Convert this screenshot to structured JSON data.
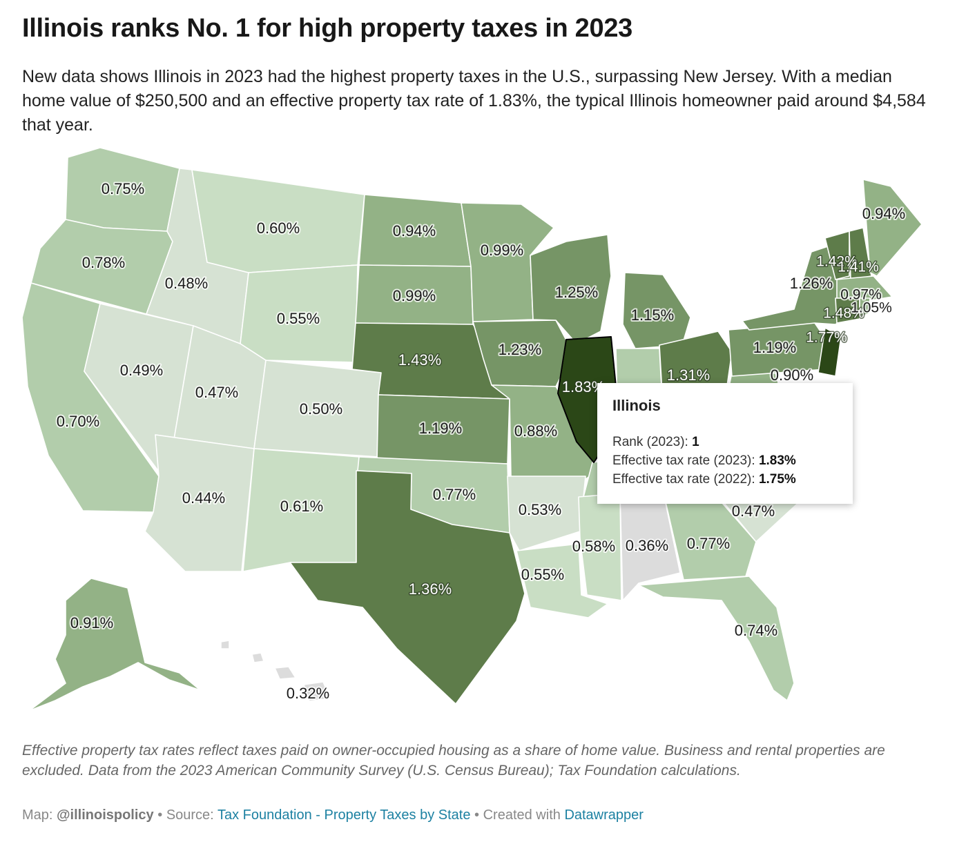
{
  "title": "Illinois ranks No. 1 for high property taxes in 2023",
  "subtitle": "New data shows Illinois in 2023 had the highest property taxes in the U.S., surpassing New Jersey. With a median home value of $250,500 and an effective property tax rate of 1.83%, the typical Illinois homeowner paid around $4,584 that year.",
  "colors": {
    "very_dark": "#2b4717",
    "dark": "#5e7c4a",
    "mid_dark": "#769566",
    "mid": "#93b286",
    "light": "#b2cdab",
    "lighter": "#c9dec4",
    "lightest": "#d6e2d3",
    "gray": "#dcdcdc",
    "link": "#1d81a2"
  },
  "map": {
    "states": [
      {
        "name": "Washington",
        "rate": "0.75%"
      },
      {
        "name": "Oregon",
        "rate": "0.78%"
      },
      {
        "name": "California",
        "rate": "0.70%"
      },
      {
        "name": "Nevada",
        "rate": "0.49%"
      },
      {
        "name": "Idaho",
        "rate": "0.48%"
      },
      {
        "name": "Montana",
        "rate": "0.60%"
      },
      {
        "name": "Wyoming",
        "rate": "0.55%"
      },
      {
        "name": "Utah",
        "rate": "0.47%"
      },
      {
        "name": "Arizona",
        "rate": "0.44%"
      },
      {
        "name": "Colorado",
        "rate": "0.50%"
      },
      {
        "name": "New Mexico",
        "rate": "0.61%"
      },
      {
        "name": "North Dakota",
        "rate": "0.94%"
      },
      {
        "name": "South Dakota",
        "rate": "0.99%"
      },
      {
        "name": "Nebraska",
        "rate": "1.43%"
      },
      {
        "name": "Kansas",
        "rate": "1.19%"
      },
      {
        "name": "Oklahoma",
        "rate": "0.77%"
      },
      {
        "name": "Texas",
        "rate": "1.36%"
      },
      {
        "name": "Minnesota",
        "rate": "0.99%"
      },
      {
        "name": "Iowa",
        "rate": "1.23%"
      },
      {
        "name": "Missouri",
        "rate": "0.88%"
      },
      {
        "name": "Arkansas",
        "rate": "0.53%"
      },
      {
        "name": "Louisiana",
        "rate": "0.55%"
      },
      {
        "name": "Wisconsin",
        "rate": "1.25%"
      },
      {
        "name": "Illinois",
        "rate": "1.83%"
      },
      {
        "name": "Michigan",
        "rate": "1.15%"
      },
      {
        "name": "Ohio",
        "rate": "1.31%"
      },
      {
        "name": "Mississippi",
        "rate": "0.58%"
      },
      {
        "name": "Alabama",
        "rate": "0.36%"
      },
      {
        "name": "Georgia",
        "rate": "0.77%"
      },
      {
        "name": "South Carolina",
        "rate": "0.47%"
      },
      {
        "name": "Florida",
        "rate": "0.74%"
      },
      {
        "name": "Pennsylvania",
        "rate": "1.19%"
      },
      {
        "name": "West Virginia",
        "rate": "0.90%"
      },
      {
        "name": "New York",
        "rate": "1.26%"
      },
      {
        "name": "New Jersey",
        "rate": "1.77%"
      },
      {
        "name": "Vermont",
        "rate": "1.42%"
      },
      {
        "name": "New Hampshire",
        "rate": "1.41%"
      },
      {
        "name": "Maine",
        "rate": "0.94%"
      },
      {
        "name": "Massachusetts",
        "rate": "0.97%"
      },
      {
        "name": "Connecticut",
        "rate": "1.48%"
      },
      {
        "name": "Rhode Island",
        "rate": "1.05%"
      },
      {
        "name": "Alaska",
        "rate": "0.91%"
      },
      {
        "name": "Hawaii",
        "rate": "0.32%"
      }
    ]
  },
  "tooltip": {
    "state": "Illinois",
    "rank_label": "Rank (2023):",
    "rank_value": "1",
    "rate2023_label": "Effective tax rate (2023):",
    "rate2023_value": "1.83%",
    "rate2022_label": "Effective tax rate (2022):",
    "rate2022_value": "1.75%"
  },
  "notes": "Effective property tax rates reflect taxes paid on owner-occupied housing as a share of home value. Business and rental properties are excluded. Data from the 2023 American Community Survey (U.S. Census Bureau); Tax Foundation calculations.",
  "footer": {
    "map_prefix": "Map:",
    "map_author": "@illinoispolicy",
    "sep1": "•",
    "source_prefix": "Source:",
    "source_link": "Tax Foundation - Property Taxes by State",
    "sep2": "•",
    "created_prefix": "Created with",
    "created_link": "Datawrapper"
  }
}
